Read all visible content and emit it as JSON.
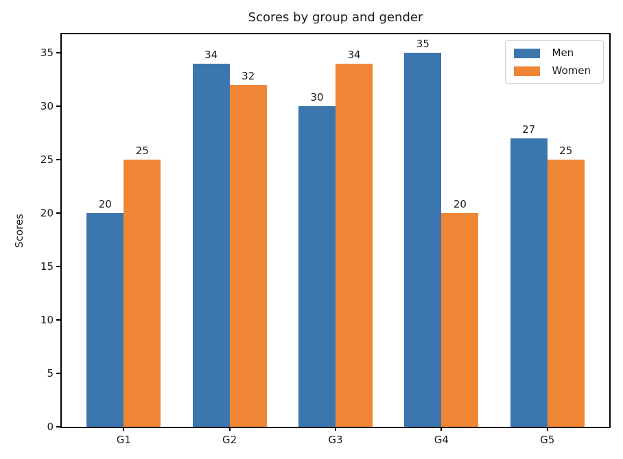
{
  "chart_data": {
    "type": "bar",
    "title": "Scores by group and gender",
    "xlabel": "",
    "ylabel": "Scores",
    "categories": [
      "G1",
      "G2",
      "G3",
      "G4",
      "G5"
    ],
    "series": [
      {
        "name": "Men",
        "color": "#3c76af",
        "values": [
          20,
          34,
          30,
          35,
          27
        ]
      },
      {
        "name": "Women",
        "color": "#ef8636",
        "values": [
          25,
          32,
          34,
          20,
          25
        ]
      }
    ],
    "bar_value_labels": [
      {
        "group": "G1",
        "men": 20,
        "women": 25
      },
      {
        "group": "G2",
        "men": 34,
        "women": 32
      },
      {
        "group": "G3",
        "men": 30,
        "women": 34
      },
      {
        "group": "G4",
        "men": 35,
        "women": 20
      },
      {
        "group": "G5",
        "men": 27,
        "women": 25
      }
    ],
    "yticks": [
      0,
      5,
      10,
      15,
      20,
      25,
      30,
      35
    ],
    "ylim": [
      0,
      36.75
    ],
    "grid": false,
    "legend": {
      "position": "upper right",
      "entries": [
        "Men",
        "Women"
      ]
    },
    "spine_color": "#000000",
    "background_color": "#ffffff"
  }
}
